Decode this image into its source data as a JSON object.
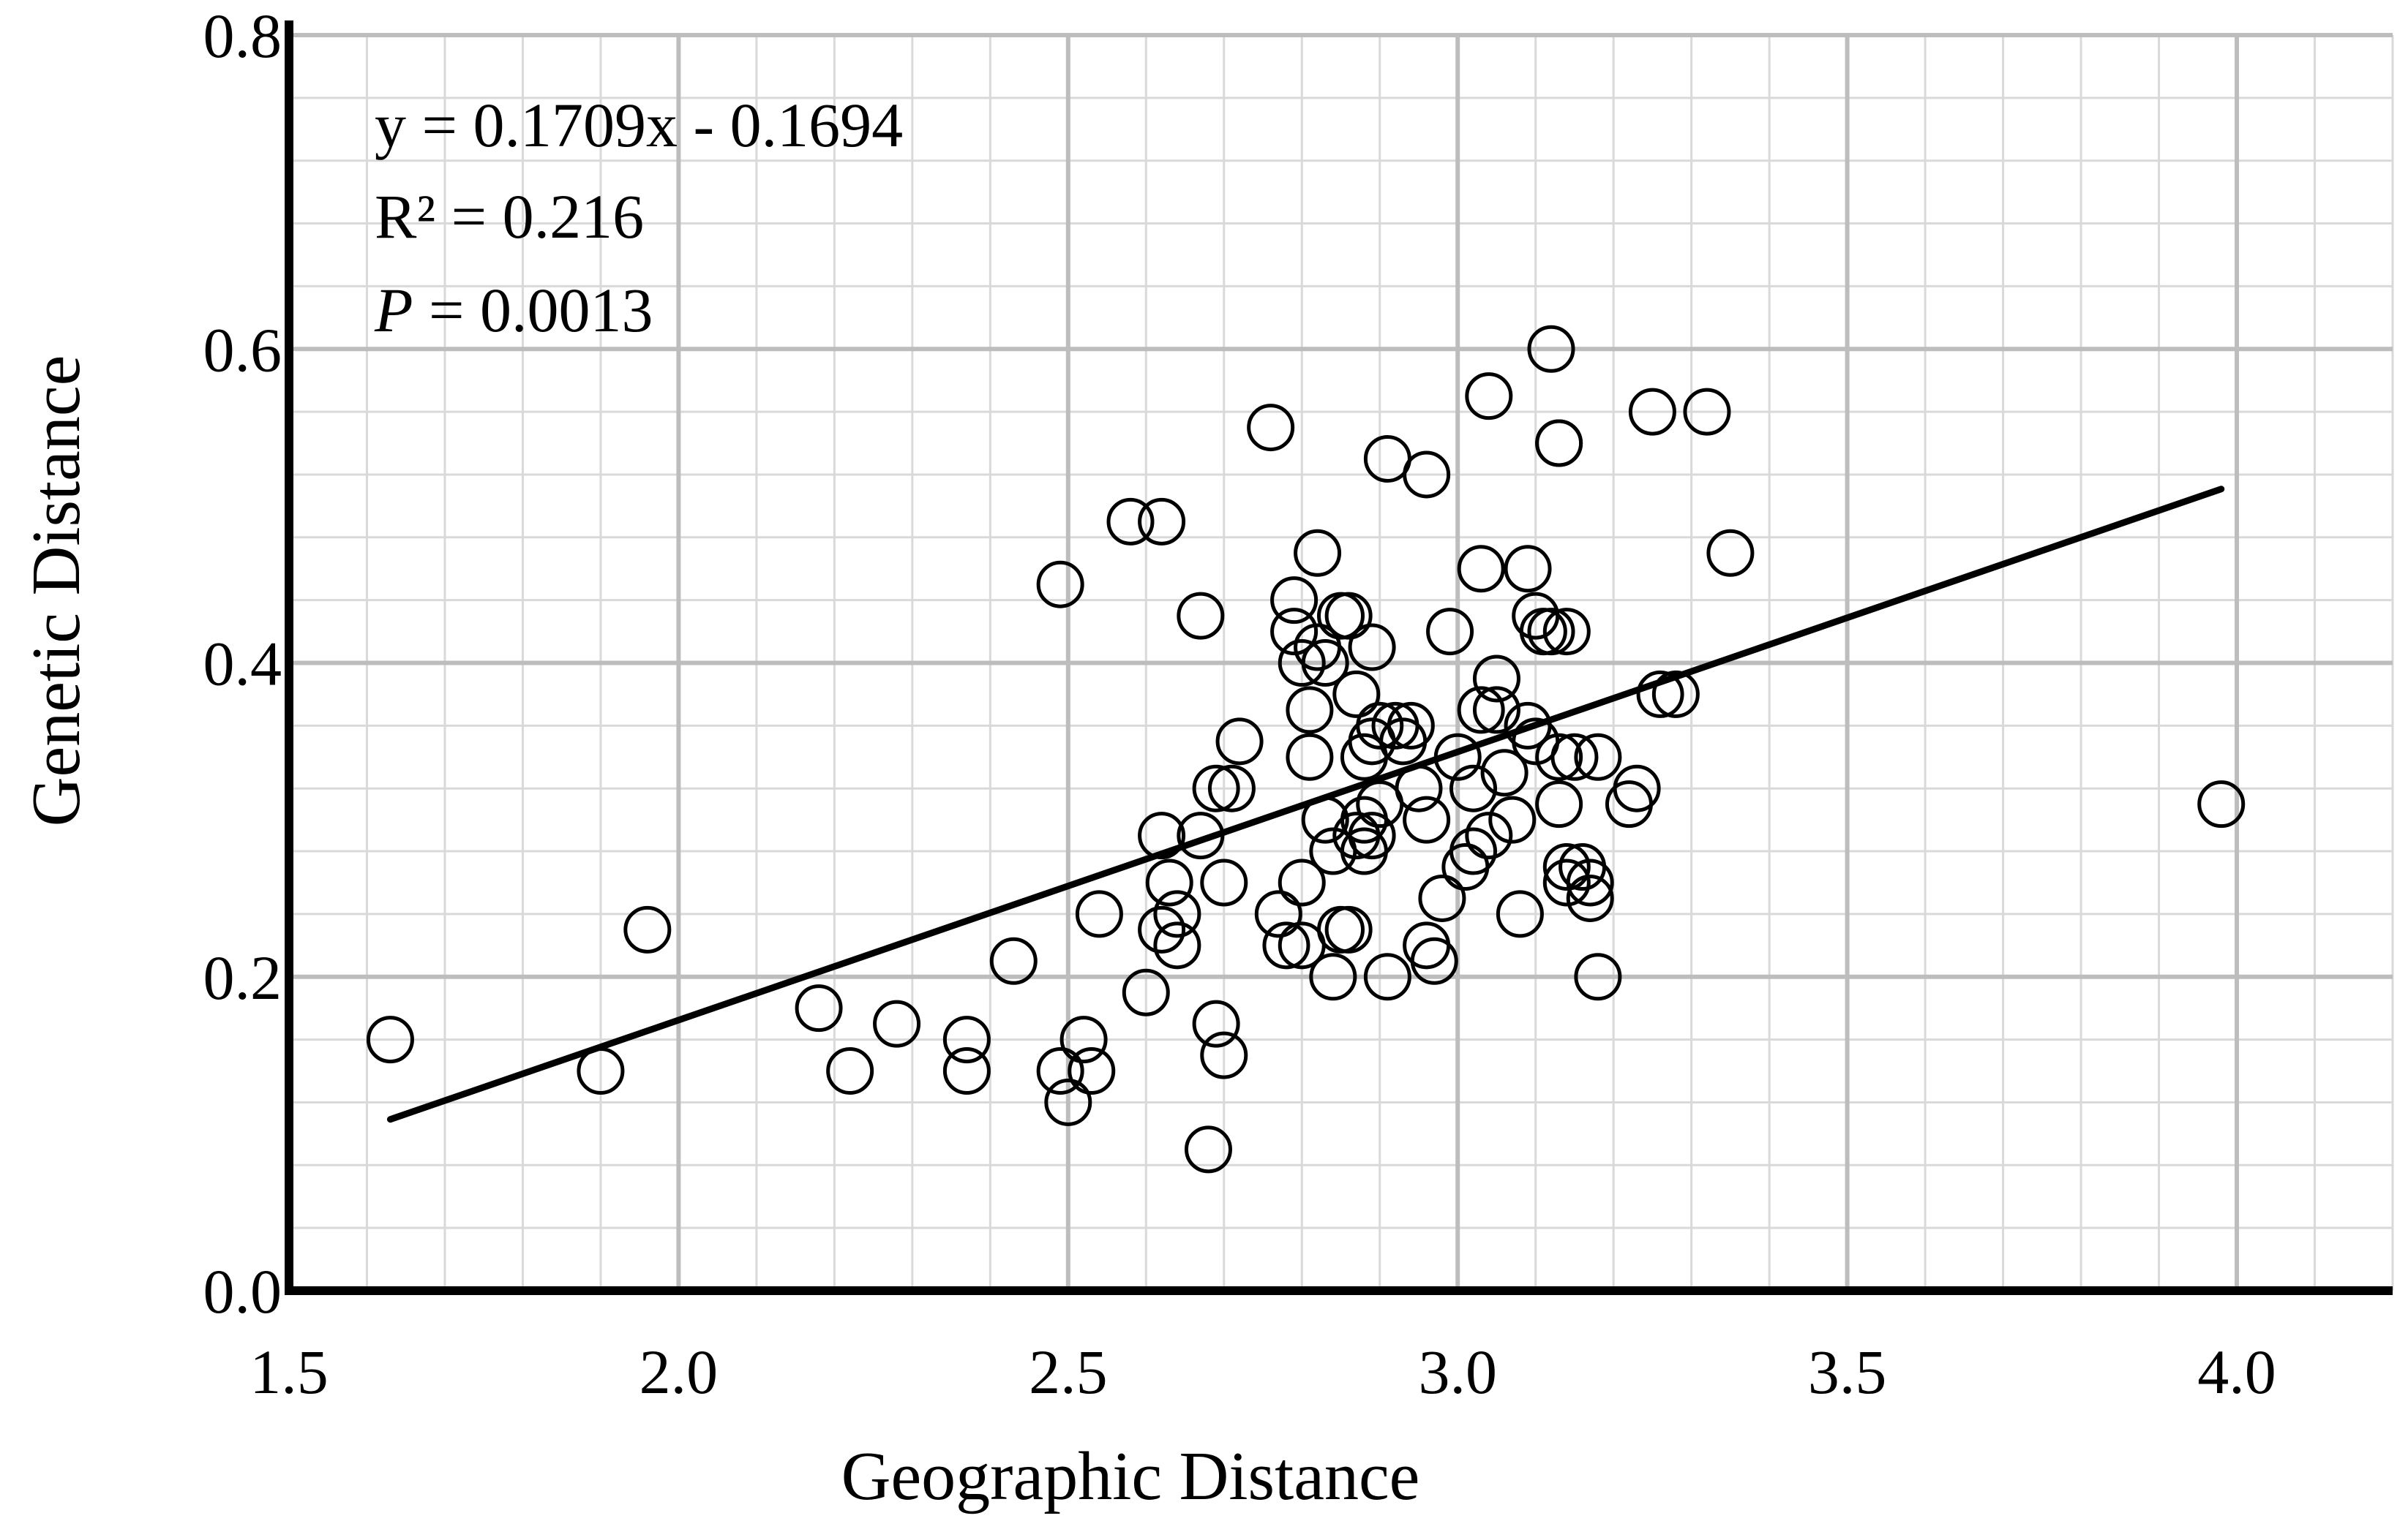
{
  "chart_data": {
    "type": "scatter",
    "xlabel": "Geographic Distance",
    "ylabel": "Genetic Distance",
    "xlim": [
      1.5,
      4.2
    ],
    "ylim": [
      0.0,
      0.8
    ],
    "x_ticks": [
      "1.5",
      "2.0",
      "2.5",
      "3.0",
      "3.5",
      "4.0"
    ],
    "y_ticks": [
      "0.0",
      "0.2",
      "0.4",
      "0.6",
      "0.8"
    ],
    "grid": true,
    "annotations": {
      "equation": "y = 0.1709x - 0.1694",
      "r2": "R² = 0.216",
      "p_label": "P",
      "p_value": " = 0.0013"
    },
    "trendline": {
      "slope": 0.1709,
      "intercept": -0.1694,
      "x_start": 1.63,
      "x_end": 3.98
    },
    "points": [
      [
        1.63,
        0.16
      ],
      [
        1.9,
        0.14
      ],
      [
        1.96,
        0.23
      ],
      [
        2.18,
        0.18
      ],
      [
        2.22,
        0.14
      ],
      [
        2.28,
        0.17
      ],
      [
        2.37,
        0.16
      ],
      [
        2.37,
        0.14
      ],
      [
        2.43,
        0.21
      ],
      [
        2.49,
        0.45
      ],
      [
        2.49,
        0.14
      ],
      [
        2.5,
        0.12
      ],
      [
        2.52,
        0.16
      ],
      [
        2.53,
        0.14
      ],
      [
        2.54,
        0.24
      ],
      [
        2.58,
        0.49
      ],
      [
        2.6,
        0.19
      ],
      [
        2.62,
        0.49
      ],
      [
        2.62,
        0.23
      ],
      [
        2.62,
        0.29
      ],
      [
        2.63,
        0.26
      ],
      [
        2.64,
        0.24
      ],
      [
        2.64,
        0.22
      ],
      [
        2.67,
        0.43
      ],
      [
        2.67,
        0.29
      ],
      [
        2.68,
        0.09
      ],
      [
        2.69,
        0.32
      ],
      [
        2.69,
        0.17
      ],
      [
        2.7,
        0.15
      ],
      [
        2.7,
        0.26
      ],
      [
        2.71,
        0.32
      ],
      [
        2.72,
        0.35
      ],
      [
        2.76,
        0.55
      ],
      [
        2.77,
        0.24
      ],
      [
        2.78,
        0.22
      ],
      [
        2.79,
        0.44
      ],
      [
        2.79,
        0.42
      ],
      [
        2.8,
        0.4
      ],
      [
        2.8,
        0.22
      ],
      [
        2.8,
        0.26
      ],
      [
        2.81,
        0.34
      ],
      [
        2.81,
        0.37
      ],
      [
        2.82,
        0.47
      ],
      [
        2.82,
        0.41
      ],
      [
        2.83,
        0.4
      ],
      [
        2.83,
        0.3
      ],
      [
        2.84,
        0.28
      ],
      [
        2.84,
        0.2
      ],
      [
        2.85,
        0.43
      ],
      [
        2.85,
        0.23
      ],
      [
        2.86,
        0.43
      ],
      [
        2.86,
        0.23
      ],
      [
        2.87,
        0.38
      ],
      [
        2.87,
        0.29
      ],
      [
        2.88,
        0.34
      ],
      [
        2.88,
        0.3
      ],
      [
        2.88,
        0.28
      ],
      [
        2.89,
        0.41
      ],
      [
        2.89,
        0.35
      ],
      [
        2.89,
        0.29
      ],
      [
        2.9,
        0.36
      ],
      [
        2.9,
        0.31
      ],
      [
        2.91,
        0.53
      ],
      [
        2.91,
        0.2
      ],
      [
        2.92,
        0.36
      ],
      [
        2.93,
        0.35
      ],
      [
        2.94,
        0.36
      ],
      [
        2.95,
        0.32
      ],
      [
        2.96,
        0.52
      ],
      [
        2.96,
        0.3
      ],
      [
        2.96,
        0.22
      ],
      [
        2.97,
        0.21
      ],
      [
        2.98,
        0.25
      ],
      [
        2.99,
        0.42
      ],
      [
        3.0,
        0.34
      ],
      [
        3.01,
        0.27
      ],
      [
        3.02,
        0.32
      ],
      [
        3.02,
        0.28
      ],
      [
        3.03,
        0.46
      ],
      [
        3.03,
        0.37
      ],
      [
        3.04,
        0.57
      ],
      [
        3.04,
        0.29
      ],
      [
        3.05,
        0.39
      ],
      [
        3.05,
        0.37
      ],
      [
        3.06,
        0.33
      ],
      [
        3.07,
        0.3
      ],
      [
        3.08,
        0.24
      ],
      [
        3.09,
        0.46
      ],
      [
        3.09,
        0.36
      ],
      [
        3.1,
        0.35
      ],
      [
        3.1,
        0.43
      ],
      [
        3.11,
        0.42
      ],
      [
        3.12,
        0.6
      ],
      [
        3.12,
        0.42
      ],
      [
        3.13,
        0.54
      ],
      [
        3.13,
        0.54
      ],
      [
        3.13,
        0.34
      ],
      [
        3.13,
        0.31
      ],
      [
        3.14,
        0.42
      ],
      [
        3.14,
        0.27
      ],
      [
        3.14,
        0.26
      ],
      [
        3.15,
        0.34
      ],
      [
        3.16,
        0.27
      ],
      [
        3.17,
        0.26
      ],
      [
        3.17,
        0.25
      ],
      [
        3.18,
        0.34
      ],
      [
        3.18,
        0.2
      ],
      [
        3.22,
        0.31
      ],
      [
        3.23,
        0.32
      ],
      [
        3.25,
        0.56
      ],
      [
        3.26,
        0.38
      ],
      [
        3.28,
        0.38
      ],
      [
        3.32,
        0.56
      ],
      [
        3.35,
        0.47
      ],
      [
        3.98,
        0.31
      ]
    ]
  }
}
